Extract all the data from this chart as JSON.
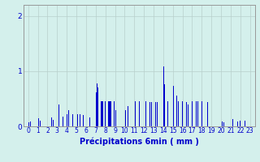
{
  "xlabel": "Précipitations 6min ( mm )",
  "xlim": [
    -0.5,
    23.5
  ],
  "ylim": [
    0,
    2.2
  ],
  "yticks": [
    0,
    1,
    2
  ],
  "xticks": [
    0,
    1,
    2,
    3,
    4,
    5,
    6,
    7,
    8,
    9,
    10,
    11,
    12,
    13,
    14,
    15,
    16,
    17,
    18,
    19,
    20,
    21,
    22,
    23
  ],
  "bar_color": "#0000cc",
  "background_color": "#d4f0ec",
  "grid_color": "#b8d0cc",
  "figsize": [
    3.2,
    2.0
  ],
  "dpi": 100,
  "bars": [
    [
      0.05,
      0.07
    ],
    [
      0.25,
      0.09
    ],
    [
      1.05,
      0.15
    ],
    [
      1.25,
      0.1
    ],
    [
      2.05,
      0.2
    ],
    [
      2.2,
      0.24
    ],
    [
      2.4,
      0.16
    ],
    [
      2.6,
      0.12
    ],
    [
      3.05,
      0.62
    ],
    [
      3.2,
      0.4
    ],
    [
      3.4,
      0.24
    ],
    [
      3.6,
      0.18
    ],
    [
      4.05,
      0.22
    ],
    [
      4.2,
      0.3
    ],
    [
      4.4,
      0.22
    ],
    [
      4.6,
      0.22
    ],
    [
      5.1,
      0.22
    ],
    [
      5.4,
      0.22
    ],
    [
      5.7,
      0.2
    ],
    [
      6.1,
      0.16
    ],
    [
      6.4,
      0.16
    ],
    [
      7.05,
      0.62
    ],
    [
      7.15,
      0.78
    ],
    [
      7.25,
      0.7
    ],
    [
      7.35,
      0.64
    ],
    [
      7.45,
      0.64
    ],
    [
      7.55,
      0.46
    ],
    [
      7.65,
      0.46
    ],
    [
      7.75,
      0.46
    ],
    [
      7.85,
      0.38
    ],
    [
      8.0,
      0.46
    ],
    [
      8.1,
      0.46
    ],
    [
      8.2,
      0.46
    ],
    [
      8.3,
      0.46
    ],
    [
      8.4,
      0.46
    ],
    [
      8.5,
      0.46
    ],
    [
      8.6,
      0.46
    ],
    [
      8.7,
      0.46
    ],
    [
      8.8,
      0.46
    ],
    [
      8.9,
      0.46
    ],
    [
      9.1,
      0.3
    ],
    [
      9.3,
      0.28
    ],
    [
      10.1,
      0.3
    ],
    [
      10.35,
      0.36
    ],
    [
      10.55,
      0.3
    ],
    [
      11.1,
      0.46
    ],
    [
      11.3,
      0.36
    ],
    [
      11.55,
      0.46
    ],
    [
      11.75,
      0.46
    ],
    [
      12.0,
      0.46
    ],
    [
      12.2,
      0.46
    ],
    [
      12.4,
      0.44
    ],
    [
      12.6,
      0.44
    ],
    [
      12.8,
      0.44
    ],
    [
      13.0,
      0.44
    ],
    [
      13.2,
      0.44
    ],
    [
      13.4,
      0.44
    ],
    [
      13.6,
      0.42
    ],
    [
      14.05,
      1.08
    ],
    [
      14.15,
      0.76
    ],
    [
      14.25,
      0.68
    ],
    [
      14.45,
      0.46
    ],
    [
      15.05,
      0.74
    ],
    [
      15.2,
      0.56
    ],
    [
      15.4,
      0.56
    ],
    [
      15.55,
      0.46
    ],
    [
      16.0,
      0.46
    ],
    [
      16.2,
      0.46
    ],
    [
      16.4,
      0.44
    ],
    [
      16.6,
      0.4
    ],
    [
      16.8,
      0.3
    ],
    [
      17.0,
      0.46
    ],
    [
      17.2,
      0.46
    ],
    [
      17.4,
      0.46
    ],
    [
      17.6,
      0.46
    ],
    [
      17.8,
      0.44
    ],
    [
      18.0,
      0.46
    ],
    [
      18.3,
      0.46
    ],
    [
      18.6,
      0.44
    ],
    [
      20.1,
      0.09
    ],
    [
      20.3,
      0.07
    ],
    [
      21.0,
      0.11
    ],
    [
      21.2,
      0.13
    ],
    [
      21.5,
      0.11
    ],
    [
      21.7,
      0.09
    ],
    [
      22.0,
      0.11
    ],
    [
      22.2,
      0.13
    ],
    [
      22.5,
      0.11
    ],
    [
      22.7,
      0.13
    ],
    [
      23.1,
      0.07
    ]
  ]
}
